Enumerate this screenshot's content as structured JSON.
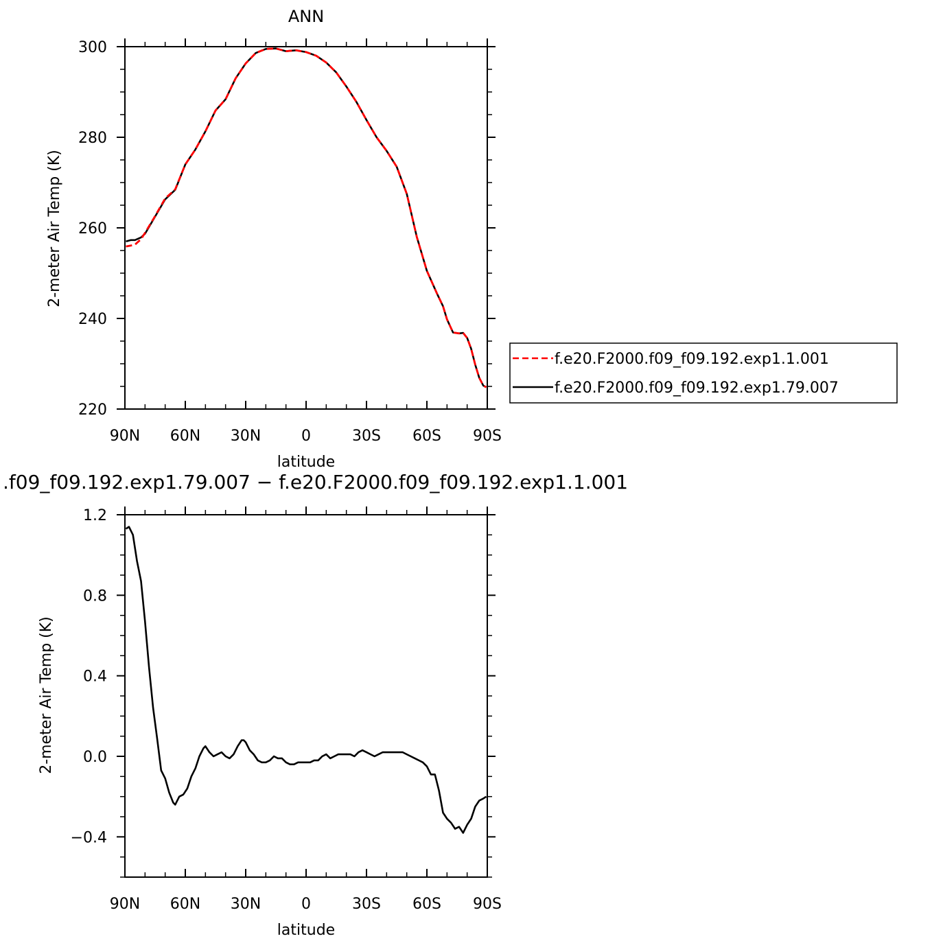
{
  "chart_data": [
    {
      "type": "line",
      "title": "ANN",
      "xlabel": "latitude",
      "ylabel": "2-meter Air Temp (K)",
      "xlim": [
        90,
        -90
      ],
      "ylim": [
        220,
        300
      ],
      "x_ticks": [
        90,
        60,
        30,
        0,
        -30,
        -60,
        -90
      ],
      "x_tick_labels": [
        "90N",
        "60N",
        "30N",
        "0",
        "30S",
        "60S",
        "90S"
      ],
      "y_ticks": [
        220,
        240,
        260,
        280,
        300
      ],
      "y_tick_labels": [
        "220",
        "240",
        "260",
        "280",
        "300"
      ],
      "grid": false,
      "legend_position": "right",
      "series": [
        {
          "name": "f.e20.F2000.f09_f09.192.exp1.1.001",
          "color": "#ff0000",
          "style": "dashed",
          "x": [
            89.5,
            87,
            85,
            82,
            80,
            75,
            70,
            65,
            60,
            55,
            50,
            45,
            40,
            35,
            30,
            25,
            20,
            15,
            10,
            5,
            0,
            -5,
            -10,
            -15,
            -20,
            -25,
            -30,
            -35,
            -40,
            -45,
            -50,
            -55,
            -60,
            -65,
            -68,
            -70,
            -73,
            -76,
            -78,
            -80,
            -82,
            -84,
            -86,
            -88,
            -89.5
          ],
          "y": [
            255.9,
            256.1,
            256.3,
            257.5,
            258.9,
            262.6,
            266.5,
            268.5,
            274.0,
            277.3,
            281.3,
            285.9,
            288.4,
            293.0,
            296.3,
            298.6,
            299.5,
            299.6,
            299.0,
            299.2,
            298.8,
            298.0,
            296.5,
            294.3,
            291.2,
            287.8,
            283.8,
            280.0,
            277.0,
            273.5,
            267.5,
            258.0,
            250.5,
            245.5,
            242.7,
            239.8,
            236.9,
            236.7,
            236.8,
            235.7,
            233.3,
            229.8,
            226.9,
            225.2,
            224.8
          ]
        },
        {
          "name": "f.e20.F2000.f09_f09.192.exp1.79.007",
          "color": "#000000",
          "style": "solid",
          "x": [
            89.5,
            87,
            85,
            82,
            80,
            75,
            70,
            65,
            60,
            55,
            50,
            45,
            40,
            35,
            30,
            25,
            20,
            15,
            10,
            5,
            0,
            -5,
            -10,
            -15,
            -20,
            -25,
            -30,
            -35,
            -40,
            -45,
            -50,
            -55,
            -60,
            -65,
            -68,
            -70,
            -73,
            -76,
            -78,
            -80,
            -82,
            -84,
            -86,
            -88,
            -89.5
          ],
          "y": [
            257.0,
            257.3,
            257.3,
            257.9,
            258.7,
            262.5,
            266.3,
            268.4,
            274.0,
            277.3,
            281.3,
            285.9,
            288.4,
            293.0,
            296.3,
            298.6,
            299.5,
            299.6,
            299.0,
            299.2,
            298.8,
            298.0,
            296.5,
            294.3,
            291.2,
            287.8,
            283.8,
            280.0,
            277.0,
            273.5,
            267.5,
            258.0,
            250.5,
            245.5,
            242.7,
            239.8,
            236.9,
            236.7,
            236.8,
            235.7,
            233.3,
            229.8,
            226.9,
            225.2,
            224.8
          ]
        }
      ]
    },
    {
      "type": "line",
      "title": ".f09_f09.192.exp1.79.007 − f.e20.F2000.f09_f09.192.exp1.1.001",
      "xlabel": "latitude",
      "ylabel": "2-meter Air Temp (K)",
      "xlim": [
        90,
        -90
      ],
      "ylim": [
        -0.6,
        1.2
      ],
      "x_ticks": [
        90,
        60,
        30,
        0,
        -30,
        -60,
        -90
      ],
      "x_tick_labels": [
        "90N",
        "60N",
        "30N",
        "0",
        "30S",
        "60S",
        "90S"
      ],
      "y_ticks": [
        -0.4,
        0.0,
        0.4,
        0.8,
        1.2
      ],
      "y_tick_labels": [
        "−0.4",
        "0.0",
        "0.4",
        "0.8",
        "1.2"
      ],
      "grid": false,
      "series": [
        {
          "color": "#000000",
          "style": "solid",
          "x": [
            89.5,
            88,
            86,
            84,
            82,
            80,
            78,
            76,
            74,
            72,
            70,
            68,
            66,
            65,
            63,
            61,
            59,
            57,
            55,
            53,
            51,
            50,
            48,
            46,
            44,
            42,
            40,
            38,
            36,
            34,
            32,
            31,
            30,
            28,
            26,
            24,
            22,
            20,
            18,
            16,
            14,
            12,
            10,
            8,
            6,
            4,
            2,
            0,
            -2,
            -4,
            -6,
            -8,
            -10,
            -12,
            -14,
            -16,
            -18,
            -20,
            -22,
            -24,
            -26,
            -28,
            -30,
            -32,
            -34,
            -36,
            -38,
            -40,
            -42,
            -44,
            -46,
            -48,
            -50,
            -52,
            -54,
            -56,
            -58,
            -60,
            -62,
            -64,
            -66,
            -68,
            -70,
            -72,
            -74,
            -76,
            -78,
            -80,
            -82,
            -84,
            -86,
            -88,
            -89.5
          ],
          "y": [
            1.13,
            1.14,
            1.1,
            0.97,
            0.87,
            0.67,
            0.44,
            0.24,
            0.09,
            -0.07,
            -0.11,
            -0.18,
            -0.23,
            -0.24,
            -0.2,
            -0.19,
            -0.16,
            -0.1,
            -0.06,
            0.0,
            0.04,
            0.05,
            0.02,
            0.0,
            0.01,
            0.02,
            0.0,
            -0.01,
            0.01,
            0.05,
            0.08,
            0.08,
            0.07,
            0.03,
            0.01,
            -0.02,
            -0.03,
            -0.03,
            -0.02,
            0.0,
            -0.01,
            -0.01,
            -0.03,
            -0.04,
            -0.04,
            -0.03,
            -0.03,
            -0.03,
            -0.03,
            -0.02,
            -0.02,
            0.0,
            0.01,
            -0.01,
            0.0,
            0.01,
            0.01,
            0.01,
            0.01,
            0.0,
            0.02,
            0.03,
            0.02,
            0.01,
            0.0,
            0.01,
            0.02,
            0.02,
            0.02,
            0.02,
            0.02,
            0.02,
            0.01,
            0.0,
            -0.01,
            -0.02,
            -0.03,
            -0.05,
            -0.09,
            -0.09,
            -0.17,
            -0.28,
            -0.31,
            -0.33,
            -0.36,
            -0.35,
            -0.38,
            -0.34,
            -0.31,
            -0.25,
            -0.22,
            -0.21,
            -0.2
          ]
        }
      ]
    }
  ]
}
